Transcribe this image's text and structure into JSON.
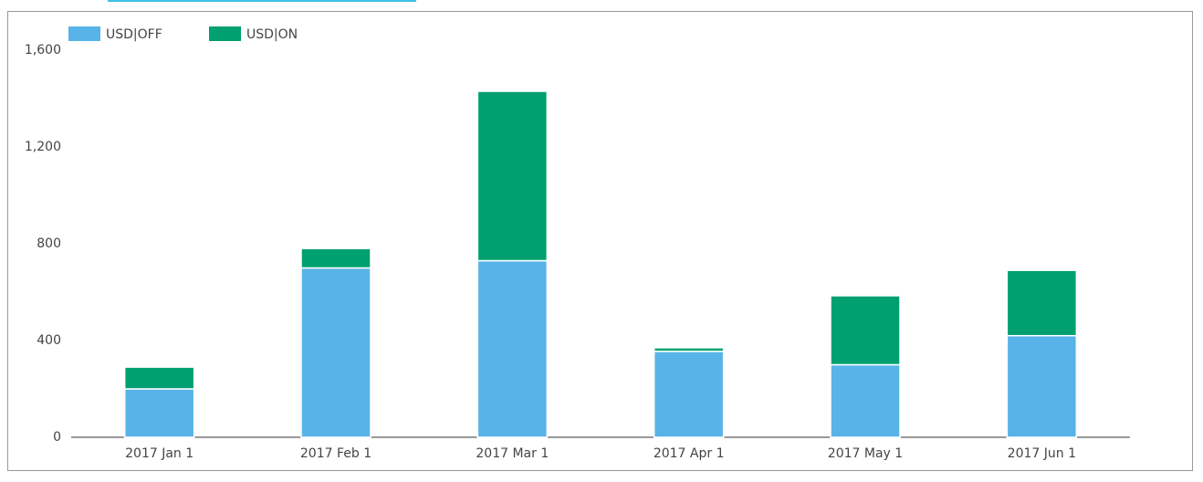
{
  "chart_data": {
    "type": "stacked-bar",
    "categories": [
      "2017 Jan 1",
      "2017 Feb 1",
      "2017 Mar 1",
      "2017 Apr 1",
      "2017 May 1",
      "2017 Jun 1"
    ],
    "series": [
      {
        "name": "USD|OFF",
        "color": "#58b3e8",
        "values": [
          200,
          700,
          730,
          355,
          300,
          420
        ]
      },
      {
        "name": "USD|ON",
        "color": "#00a070",
        "values": [
          90,
          80,
          700,
          15,
          285,
          270
        ]
      }
    ],
    "ylim": [
      0,
      1600
    ],
    "yticks": [
      0,
      400,
      800,
      {
        "value": 1200,
        "label": "1,200"
      },
      {
        "value": 1600,
        "label": "1,600"
      }
    ],
    "grid": false,
    "legend": "top-left"
  }
}
